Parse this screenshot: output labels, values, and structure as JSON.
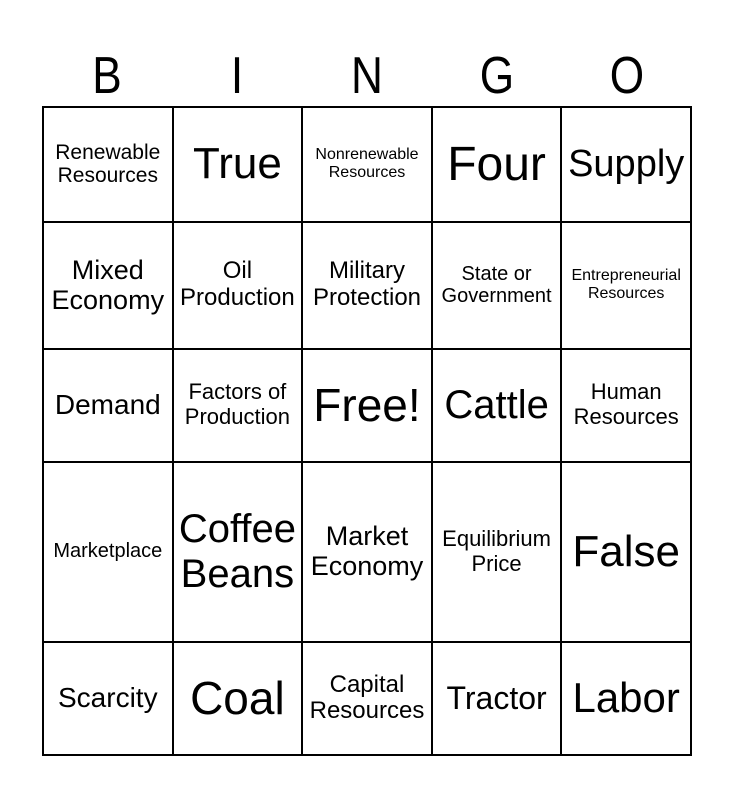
{
  "card_title": "BINGO",
  "colors": {
    "background": "#ffffff",
    "text": "#000000",
    "grid_line": "#000000"
  },
  "header": {
    "letters": [
      "B",
      "I",
      "N",
      "G",
      "O"
    ]
  },
  "grid": {
    "rows": [
      {
        "cells": [
          {
            "label": "Renewable\nResources"
          },
          {
            "label": "True"
          },
          {
            "label": "Nonrenewable\nResources"
          },
          {
            "label": "Four"
          },
          {
            "label": "Supply"
          }
        ]
      },
      {
        "cells": [
          {
            "label": "Mixed\nEconomy"
          },
          {
            "label": "Oil\nProduction"
          },
          {
            "label": "Military\nProtection"
          },
          {
            "label": "State or\nGovernment"
          },
          {
            "label": "Entrepreneurial\nResources"
          }
        ]
      },
      {
        "cells": [
          {
            "label": "Demand"
          },
          {
            "label": "Factors of\nProduction"
          },
          {
            "label": "Free!"
          },
          {
            "label": "Cattle"
          },
          {
            "label": "Human\nResources"
          }
        ]
      },
      {
        "cells": [
          {
            "label": "Marketplace"
          },
          {
            "label": "Coffee\nBeans"
          },
          {
            "label": "Market\nEconomy"
          },
          {
            "label": "Equilibrium\nPrice"
          },
          {
            "label": "False"
          }
        ]
      },
      {
        "cells": [
          {
            "label": "Scarcity"
          },
          {
            "label": "Coal"
          },
          {
            "label": "Capital\nResources"
          },
          {
            "label": "Tractor"
          },
          {
            "label": "Labor"
          }
        ]
      }
    ]
  }
}
